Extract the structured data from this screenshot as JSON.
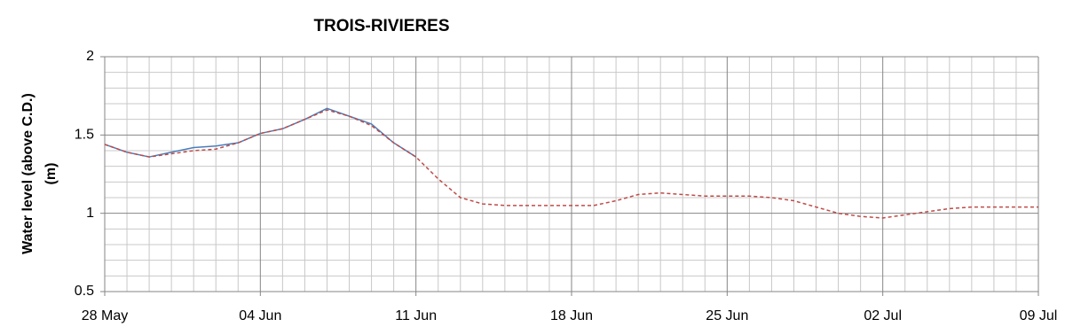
{
  "chart_data": {
    "type": "line",
    "title": "TROIS-RIVIERES",
    "y_label": [
      "Water level (above C.D.)",
      "(m)"
    ],
    "categories": [
      "28 May",
      null,
      null,
      null,
      null,
      null,
      null,
      "04 Jun",
      null,
      null,
      null,
      null,
      null,
      null,
      "11 Jun",
      null,
      null,
      null,
      null,
      null,
      null,
      "18 Jun",
      null,
      null,
      null,
      null,
      null,
      null,
      "25 Jun",
      null,
      null,
      null,
      null,
      null,
      null,
      "02 Jul",
      null,
      null,
      null,
      null,
      null,
      null,
      "09 Jul"
    ],
    "series": [
      {
        "color": "#4a7ebb",
        "dashed": false,
        "values": [
          1.44,
          1.39,
          1.36,
          1.39,
          1.42,
          1.43,
          1.45,
          1.51,
          1.54,
          1.6,
          1.67,
          1.62,
          1.57,
          1.45,
          1.36,
          null,
          null,
          null,
          null,
          null,
          null,
          null,
          null,
          null,
          null,
          null,
          null,
          null,
          null,
          null,
          null,
          null,
          null,
          null,
          null,
          null,
          null,
          null,
          null,
          null,
          null,
          null,
          null
        ]
      },
      {
        "color": "#be4b48",
        "dashed": true,
        "values": [
          1.44,
          1.39,
          1.36,
          1.38,
          1.4,
          1.41,
          1.45,
          1.51,
          1.54,
          1.6,
          1.66,
          1.62,
          1.56,
          1.45,
          1.36,
          1.22,
          1.1,
          1.06,
          1.05,
          1.05,
          1.05,
          1.05,
          1.05,
          1.08,
          1.12,
          1.13,
          1.12,
          1.11,
          1.11,
          1.11,
          1.1,
          1.08,
          1.04,
          1.0,
          0.98,
          0.97,
          0.99,
          1.01,
          1.03,
          1.04,
          1.04,
          1.04,
          1.04
        ]
      }
    ],
    "ylim": [
      0.5,
      2
    ],
    "yticks": [
      0.5,
      1,
      1.5,
      2
    ],
    "yminorticks": [
      0.6,
      0.7,
      0.8,
      0.9,
      1.1,
      1.2,
      1.3,
      1.4,
      1.6,
      1.7,
      1.8,
      1.9
    ],
    "grid": true
  }
}
